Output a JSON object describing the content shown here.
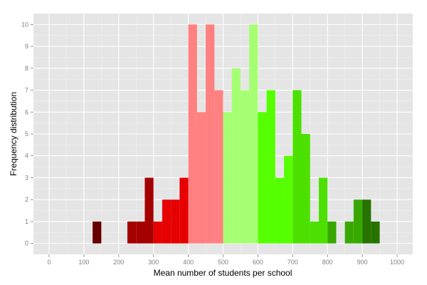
{
  "chart_data": {
    "type": "bar",
    "subtype": "histogram",
    "title": "",
    "xlabel": "Mean number of students per school",
    "ylabel": "Frequency distribution",
    "xlim": [
      -45,
      1045
    ],
    "ylim": [
      -0.5,
      10.5
    ],
    "bin_width": 25,
    "grid": true,
    "legend": "none",
    "x_ticks": [
      0,
      100,
      200,
      300,
      400,
      500,
      600,
      700,
      800,
      900,
      1000
    ],
    "y_ticks": [
      0,
      1,
      2,
      3,
      4,
      5,
      6,
      7,
      8,
      9,
      10
    ],
    "bins": [
      {
        "start": 125,
        "end": 150,
        "count": 1,
        "color": "#660000"
      },
      {
        "start": 225,
        "end": 250,
        "count": 1,
        "color": "#a50000"
      },
      {
        "start": 250,
        "end": 275,
        "count": 1,
        "color": "#a50000"
      },
      {
        "start": 275,
        "end": 300,
        "count": 3,
        "color": "#a50000"
      },
      {
        "start": 300,
        "end": 325,
        "count": 1,
        "color": "#e60000"
      },
      {
        "start": 325,
        "end": 350,
        "count": 2,
        "color": "#e60000"
      },
      {
        "start": 350,
        "end": 375,
        "count": 2,
        "color": "#e60000"
      },
      {
        "start": 375,
        "end": 400,
        "count": 3,
        "color": "#e60000"
      },
      {
        "start": 400,
        "end": 425,
        "count": 10,
        "color": "#ff8080"
      },
      {
        "start": 425,
        "end": 450,
        "count": 6,
        "color": "#ff8080"
      },
      {
        "start": 450,
        "end": 475,
        "count": 10,
        "color": "#ff8080"
      },
      {
        "start": 475,
        "end": 500,
        "count": 7,
        "color": "#ff8080"
      },
      {
        "start": 500,
        "end": 525,
        "count": 6,
        "color": "#a6ff73"
      },
      {
        "start": 525,
        "end": 550,
        "count": 8,
        "color": "#a6ff73"
      },
      {
        "start": 550,
        "end": 575,
        "count": 7,
        "color": "#a6ff73"
      },
      {
        "start": 575,
        "end": 600,
        "count": 10,
        "color": "#a6ff73"
      },
      {
        "start": 600,
        "end": 625,
        "count": 6,
        "color": "#55ff00"
      },
      {
        "start": 625,
        "end": 650,
        "count": 7,
        "color": "#55ff00"
      },
      {
        "start": 650,
        "end": 675,
        "count": 3,
        "color": "#55ff00"
      },
      {
        "start": 675,
        "end": 700,
        "count": 4,
        "color": "#55ff00"
      },
      {
        "start": 700,
        "end": 725,
        "count": 7,
        "color": "#4ce000"
      },
      {
        "start": 725,
        "end": 750,
        "count": 5,
        "color": "#4ce000"
      },
      {
        "start": 750,
        "end": 775,
        "count": 1,
        "color": "#4ce000"
      },
      {
        "start": 775,
        "end": 800,
        "count": 3,
        "color": "#4ce000"
      },
      {
        "start": 800,
        "end": 825,
        "count": 1,
        "color": "#38a800"
      },
      {
        "start": 850,
        "end": 875,
        "count": 1,
        "color": "#38a800"
      },
      {
        "start": 875,
        "end": 900,
        "count": 2,
        "color": "#38a800"
      },
      {
        "start": 900,
        "end": 925,
        "count": 2,
        "color": "#267300"
      },
      {
        "start": 925,
        "end": 950,
        "count": 1,
        "color": "#267300"
      }
    ]
  },
  "colors": {
    "panel_background": "#e5e5e5",
    "grid_major": "#ffffff",
    "grid_minor": "#f2f2f2",
    "tick_text": "#7f7f7f"
  }
}
